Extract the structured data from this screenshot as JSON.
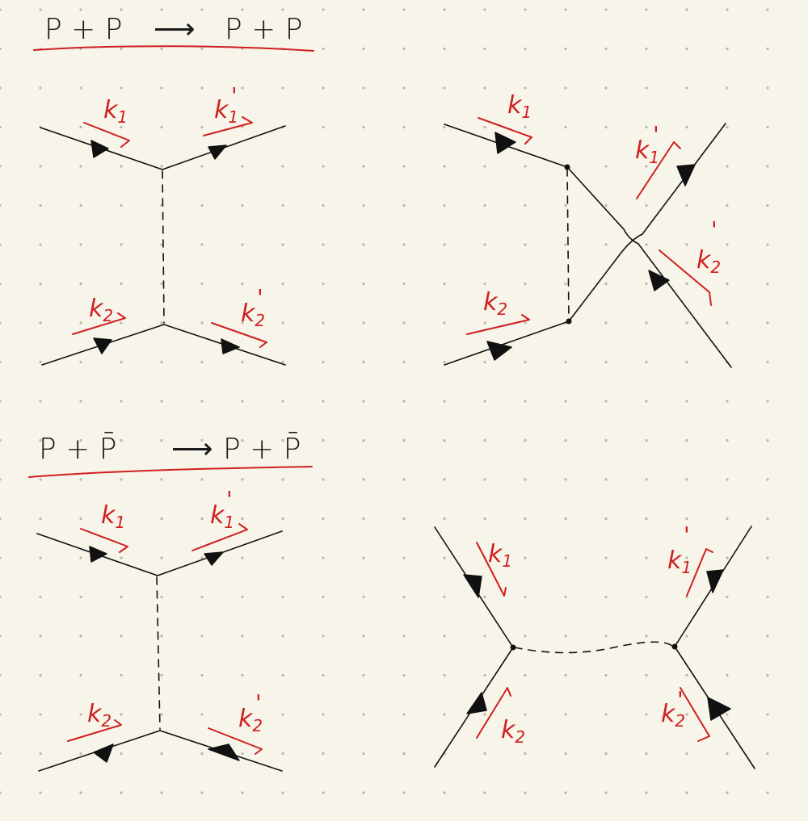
{
  "sections": {
    "pp": {
      "lhs": "P + P",
      "arrow": "⟶",
      "rhs": "P + P",
      "diagram_left": {
        "k1": "k",
        "k1_sub": "1",
        "k1p": "k",
        "k1p_sub": "1",
        "k2": "k",
        "k2_sub": "2",
        "k2p": "k",
        "k2p_sub": "2",
        "prime": "'"
      },
      "diagram_right": {
        "k1": "k",
        "k1_sub": "1",
        "k1p": "k",
        "k1p_sub": "1",
        "k2": "k",
        "k2_sub": "2",
        "k2p": "k",
        "k2p_sub": "2",
        "prime": "'"
      }
    },
    "ppbar": {
      "lhs": "P + P̄",
      "arrow": "⟶",
      "rhs": "P + P̄",
      "diagram_left": {
        "k1": "k",
        "k1_sub": "1",
        "k1p": "k",
        "k1p_sub": "1",
        "k2": "k",
        "k2_sub": "2",
        "k2p": "k",
        "k2p_sub": "2",
        "prime": "'"
      },
      "diagram_right": {
        "k1": "k",
        "k1_sub": "1",
        "k1p": "k",
        "k1p_sub": "1",
        "k2": "k",
        "k2_sub": "2",
        "k2p": "k",
        "k2p_sub": "2",
        "prime": "'"
      }
    }
  },
  "colors": {
    "ink": "#111111",
    "annotation": "#d01f1f",
    "paper": "#f7f5e9",
    "dots": "#b9b6aa"
  }
}
